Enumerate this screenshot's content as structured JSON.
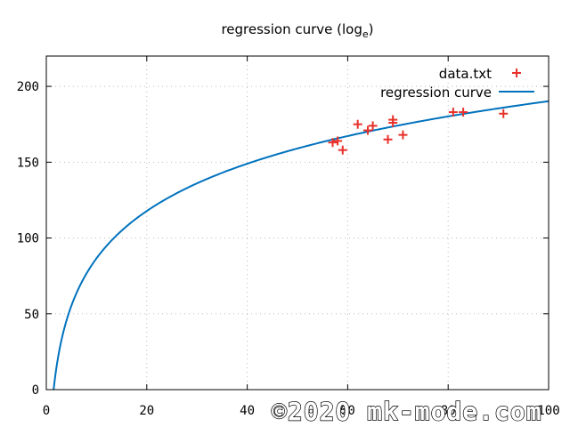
{
  "chart_data": {
    "type": "scatter",
    "title": "regression curve (log",
    "title_subscript": "e",
    "title_suffix": ")",
    "xlabel": "",
    "ylabel": "",
    "xlim": [
      0,
      100
    ],
    "ylim": [
      0,
      220
    ],
    "xticks": [
      0,
      20,
      40,
      60,
      80,
      100
    ],
    "yticks": [
      0,
      50,
      100,
      150,
      200
    ],
    "grid": true,
    "legend_position": "top-right",
    "series": [
      {
        "name": "data.txt",
        "type": "scatter",
        "marker": "+",
        "color": "#e8312a",
        "points": [
          [
            57,
            163
          ],
          [
            58,
            164
          ],
          [
            59,
            158
          ],
          [
            62,
            175
          ],
          [
            64,
            171
          ],
          [
            65,
            174
          ],
          [
            68,
            165
          ],
          [
            69,
            176
          ],
          [
            69,
            178
          ],
          [
            71,
            168
          ],
          [
            81,
            183
          ],
          [
            83,
            183
          ],
          [
            91,
            182
          ]
        ]
      },
      {
        "name": "regression curve",
        "type": "line",
        "color": "#0072bd",
        "formula": "y = a + b*ln(x)",
        "a": -17,
        "b": 45
      }
    ]
  },
  "watermark": "©2020 mk-mode.com"
}
